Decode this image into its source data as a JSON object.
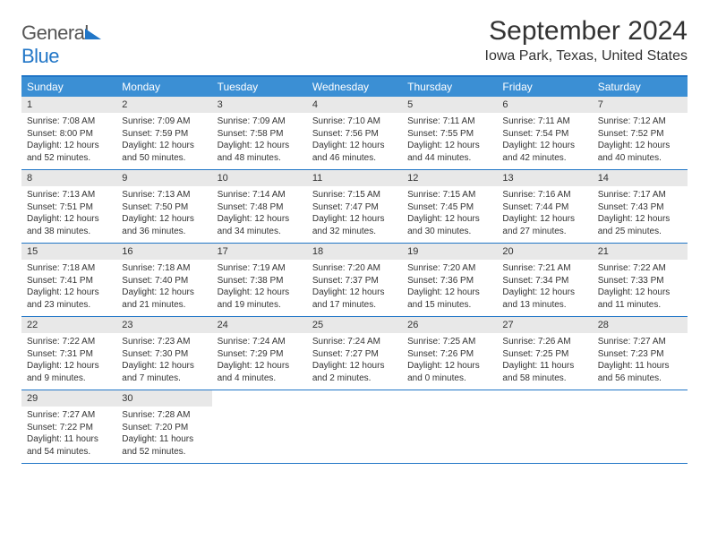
{
  "logo": {
    "text1": "General",
    "text2": "Blue"
  },
  "title": "September 2024",
  "location": "Iowa Park, Texas, United States",
  "colors": {
    "header_bar": "#3b8fd4",
    "border": "#2176c7",
    "daynum_bg": "#e8e8e8",
    "text": "#333333",
    "logo_blue": "#2176c7"
  },
  "weekdays": [
    "Sunday",
    "Monday",
    "Tuesday",
    "Wednesday",
    "Thursday",
    "Friday",
    "Saturday"
  ],
  "days": [
    {
      "n": "1",
      "sunrise": "Sunrise: 7:08 AM",
      "sunset": "Sunset: 8:00 PM",
      "day1": "Daylight: 12 hours",
      "day2": "and 52 minutes."
    },
    {
      "n": "2",
      "sunrise": "Sunrise: 7:09 AM",
      "sunset": "Sunset: 7:59 PM",
      "day1": "Daylight: 12 hours",
      "day2": "and 50 minutes."
    },
    {
      "n": "3",
      "sunrise": "Sunrise: 7:09 AM",
      "sunset": "Sunset: 7:58 PM",
      "day1": "Daylight: 12 hours",
      "day2": "and 48 minutes."
    },
    {
      "n": "4",
      "sunrise": "Sunrise: 7:10 AM",
      "sunset": "Sunset: 7:56 PM",
      "day1": "Daylight: 12 hours",
      "day2": "and 46 minutes."
    },
    {
      "n": "5",
      "sunrise": "Sunrise: 7:11 AM",
      "sunset": "Sunset: 7:55 PM",
      "day1": "Daylight: 12 hours",
      "day2": "and 44 minutes."
    },
    {
      "n": "6",
      "sunrise": "Sunrise: 7:11 AM",
      "sunset": "Sunset: 7:54 PM",
      "day1": "Daylight: 12 hours",
      "day2": "and 42 minutes."
    },
    {
      "n": "7",
      "sunrise": "Sunrise: 7:12 AM",
      "sunset": "Sunset: 7:52 PM",
      "day1": "Daylight: 12 hours",
      "day2": "and 40 minutes."
    },
    {
      "n": "8",
      "sunrise": "Sunrise: 7:13 AM",
      "sunset": "Sunset: 7:51 PM",
      "day1": "Daylight: 12 hours",
      "day2": "and 38 minutes."
    },
    {
      "n": "9",
      "sunrise": "Sunrise: 7:13 AM",
      "sunset": "Sunset: 7:50 PM",
      "day1": "Daylight: 12 hours",
      "day2": "and 36 minutes."
    },
    {
      "n": "10",
      "sunrise": "Sunrise: 7:14 AM",
      "sunset": "Sunset: 7:48 PM",
      "day1": "Daylight: 12 hours",
      "day2": "and 34 minutes."
    },
    {
      "n": "11",
      "sunrise": "Sunrise: 7:15 AM",
      "sunset": "Sunset: 7:47 PM",
      "day1": "Daylight: 12 hours",
      "day2": "and 32 minutes."
    },
    {
      "n": "12",
      "sunrise": "Sunrise: 7:15 AM",
      "sunset": "Sunset: 7:45 PM",
      "day1": "Daylight: 12 hours",
      "day2": "and 30 minutes."
    },
    {
      "n": "13",
      "sunrise": "Sunrise: 7:16 AM",
      "sunset": "Sunset: 7:44 PM",
      "day1": "Daylight: 12 hours",
      "day2": "and 27 minutes."
    },
    {
      "n": "14",
      "sunrise": "Sunrise: 7:17 AM",
      "sunset": "Sunset: 7:43 PM",
      "day1": "Daylight: 12 hours",
      "day2": "and 25 minutes."
    },
    {
      "n": "15",
      "sunrise": "Sunrise: 7:18 AM",
      "sunset": "Sunset: 7:41 PM",
      "day1": "Daylight: 12 hours",
      "day2": "and 23 minutes."
    },
    {
      "n": "16",
      "sunrise": "Sunrise: 7:18 AM",
      "sunset": "Sunset: 7:40 PM",
      "day1": "Daylight: 12 hours",
      "day2": "and 21 minutes."
    },
    {
      "n": "17",
      "sunrise": "Sunrise: 7:19 AM",
      "sunset": "Sunset: 7:38 PM",
      "day1": "Daylight: 12 hours",
      "day2": "and 19 minutes."
    },
    {
      "n": "18",
      "sunrise": "Sunrise: 7:20 AM",
      "sunset": "Sunset: 7:37 PM",
      "day1": "Daylight: 12 hours",
      "day2": "and 17 minutes."
    },
    {
      "n": "19",
      "sunrise": "Sunrise: 7:20 AM",
      "sunset": "Sunset: 7:36 PM",
      "day1": "Daylight: 12 hours",
      "day2": "and 15 minutes."
    },
    {
      "n": "20",
      "sunrise": "Sunrise: 7:21 AM",
      "sunset": "Sunset: 7:34 PM",
      "day1": "Daylight: 12 hours",
      "day2": "and 13 minutes."
    },
    {
      "n": "21",
      "sunrise": "Sunrise: 7:22 AM",
      "sunset": "Sunset: 7:33 PM",
      "day1": "Daylight: 12 hours",
      "day2": "and 11 minutes."
    },
    {
      "n": "22",
      "sunrise": "Sunrise: 7:22 AM",
      "sunset": "Sunset: 7:31 PM",
      "day1": "Daylight: 12 hours",
      "day2": "and 9 minutes."
    },
    {
      "n": "23",
      "sunrise": "Sunrise: 7:23 AM",
      "sunset": "Sunset: 7:30 PM",
      "day1": "Daylight: 12 hours",
      "day2": "and 7 minutes."
    },
    {
      "n": "24",
      "sunrise": "Sunrise: 7:24 AM",
      "sunset": "Sunset: 7:29 PM",
      "day1": "Daylight: 12 hours",
      "day2": "and 4 minutes."
    },
    {
      "n": "25",
      "sunrise": "Sunrise: 7:24 AM",
      "sunset": "Sunset: 7:27 PM",
      "day1": "Daylight: 12 hours",
      "day2": "and 2 minutes."
    },
    {
      "n": "26",
      "sunrise": "Sunrise: 7:25 AM",
      "sunset": "Sunset: 7:26 PM",
      "day1": "Daylight: 12 hours",
      "day2": "and 0 minutes."
    },
    {
      "n": "27",
      "sunrise": "Sunrise: 7:26 AM",
      "sunset": "Sunset: 7:25 PM",
      "day1": "Daylight: 11 hours",
      "day2": "and 58 minutes."
    },
    {
      "n": "28",
      "sunrise": "Sunrise: 7:27 AM",
      "sunset": "Sunset: 7:23 PM",
      "day1": "Daylight: 11 hours",
      "day2": "and 56 minutes."
    },
    {
      "n": "29",
      "sunrise": "Sunrise: 7:27 AM",
      "sunset": "Sunset: 7:22 PM",
      "day1": "Daylight: 11 hours",
      "day2": "and 54 minutes."
    },
    {
      "n": "30",
      "sunrise": "Sunrise: 7:28 AM",
      "sunset": "Sunset: 7:20 PM",
      "day1": "Daylight: 11 hours",
      "day2": "and 52 minutes."
    }
  ]
}
